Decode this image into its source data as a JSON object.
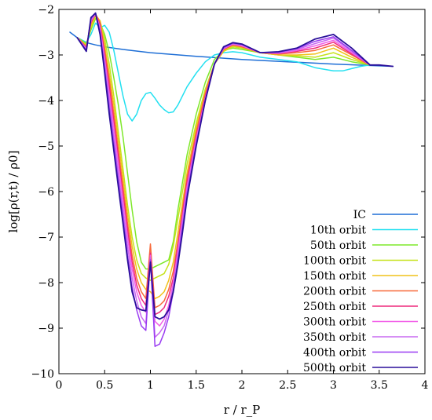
{
  "chart_data": {
    "type": "line",
    "title": "",
    "xlabel": "r / r_P",
    "ylabel": "log[ρ(r,t) / ρ0]",
    "xlim": [
      0,
      4
    ],
    "ylim": [
      -10,
      -2
    ],
    "x_ticks": [
      "0",
      "0.5",
      "1",
      "1.5",
      "2",
      "2.5",
      "3",
      "3.5",
      "4"
    ],
    "y_ticks": [
      "−2",
      "−3",
      "−4",
      "−5",
      "−6",
      "−7",
      "−8",
      "−9",
      "−10"
    ],
    "grid": false,
    "legend_position": "bottom-right",
    "series": [
      {
        "name": "IC",
        "color": "#1f6fd6",
        "x": [
          0.12,
          0.2,
          0.3,
          0.4,
          0.5,
          0.7,
          1.0,
          1.5,
          2.0,
          2.5,
          3.0,
          3.5,
          3.65
        ],
        "y": [
          -2.5,
          -2.62,
          -2.73,
          -2.78,
          -2.82,
          -2.88,
          -2.95,
          -3.03,
          -3.1,
          -3.15,
          -3.2,
          -3.24,
          -3.25
        ]
      },
      {
        "name": "10th orbit",
        "color": "#22e0f0",
        "x": [
          0.2,
          0.3,
          0.35,
          0.4,
          0.45,
          0.5,
          0.55,
          0.6,
          0.65,
          0.7,
          0.75,
          0.8,
          0.85,
          0.9,
          0.95,
          1.0,
          1.05,
          1.1,
          1.15,
          1.2,
          1.25,
          1.3,
          1.4,
          1.5,
          1.6,
          1.7,
          1.8,
          1.9,
          2.0,
          2.2,
          2.4,
          2.6,
          2.8,
          3.0,
          3.1,
          3.2,
          3.3,
          3.4,
          3.5
        ],
        "y": [
          -2.62,
          -2.72,
          -2.55,
          -2.3,
          -2.4,
          -2.35,
          -2.5,
          -2.9,
          -3.4,
          -3.9,
          -4.3,
          -4.45,
          -4.3,
          -4.0,
          -3.85,
          -3.82,
          -3.95,
          -4.1,
          -4.2,
          -4.27,
          -4.25,
          -4.1,
          -3.7,
          -3.4,
          -3.15,
          -3.0,
          -2.95,
          -2.93,
          -2.95,
          -3.05,
          -3.1,
          -3.15,
          -3.28,
          -3.35,
          -3.35,
          -3.3,
          -3.25,
          -3.22,
          -3.22
        ]
      },
      {
        "name": "50th orbit",
        "color": "#7ee82a",
        "x": [
          0.2,
          0.3,
          0.35,
          0.4,
          0.45,
          0.5,
          0.55,
          0.6,
          0.65,
          0.7,
          0.75,
          0.8,
          0.85,
          0.9,
          0.95,
          1.0,
          1.05,
          1.1,
          1.15,
          1.2,
          1.25,
          1.3,
          1.35,
          1.4,
          1.5,
          1.6,
          1.7,
          1.8,
          1.9,
          2.0,
          2.2,
          2.4,
          2.6,
          2.8,
          3.0,
          3.2,
          3.4,
          3.5
        ],
        "y": [
          -2.62,
          -2.75,
          -2.45,
          -2.2,
          -2.3,
          -2.55,
          -2.95,
          -3.5,
          -4.1,
          -4.8,
          -5.6,
          -6.4,
          -7.1,
          -7.55,
          -7.7,
          -7.7,
          -7.65,
          -7.6,
          -7.55,
          -7.5,
          -7.1,
          -6.4,
          -5.8,
          -5.2,
          -4.3,
          -3.6,
          -3.1,
          -2.9,
          -2.85,
          -2.88,
          -2.95,
          -3.0,
          -3.05,
          -3.1,
          -3.05,
          -3.15,
          -3.22,
          -3.22
        ]
      },
      {
        "name": "100th orbit",
        "color": "#c6e21a",
        "x": [
          0.2,
          0.3,
          0.35,
          0.4,
          0.45,
          0.5,
          0.55,
          0.6,
          0.65,
          0.7,
          0.75,
          0.8,
          0.85,
          0.9,
          0.95,
          1.0,
          1.05,
          1.1,
          1.15,
          1.2,
          1.25,
          1.3,
          1.35,
          1.4,
          1.5,
          1.6,
          1.7,
          1.8,
          1.9,
          2.0,
          2.2,
          2.4,
          2.6,
          2.8,
          3.0,
          3.2,
          3.4,
          3.5
        ],
        "y": [
          -2.62,
          -2.78,
          -2.4,
          -2.15,
          -2.25,
          -2.65,
          -3.2,
          -3.9,
          -4.7,
          -5.5,
          -6.3,
          -7.0,
          -7.5,
          -7.8,
          -7.9,
          -7.95,
          -7.9,
          -7.85,
          -7.8,
          -7.6,
          -7.2,
          -6.6,
          -6.0,
          -5.4,
          -4.5,
          -3.75,
          -3.2,
          -2.92,
          -2.82,
          -2.85,
          -2.95,
          -3.0,
          -3.02,
          -3.05,
          -2.95,
          -3.1,
          -3.22,
          -3.22
        ]
      },
      {
        "name": "150th orbit",
        "color": "#f0c21a",
        "x": [
          0.2,
          0.3,
          0.35,
          0.4,
          0.45,
          0.5,
          0.55,
          0.6,
          0.65,
          0.7,
          0.75,
          0.8,
          0.85,
          0.9,
          0.95,
          1.0,
          1.05,
          1.1,
          1.15,
          1.2,
          1.25,
          1.3,
          1.35,
          1.4,
          1.5,
          1.6,
          1.7,
          1.8,
          1.9,
          2.0,
          2.2,
          2.4,
          2.6,
          2.8,
          3.0,
          3.2,
          3.4,
          3.5
        ],
        "y": [
          -2.62,
          -2.8,
          -2.35,
          -2.12,
          -2.25,
          -2.8,
          -3.4,
          -4.1,
          -4.9,
          -5.7,
          -6.5,
          -7.2,
          -7.7,
          -8.0,
          -8.15,
          -8.2,
          -8.35,
          -8.3,
          -8.2,
          -7.95,
          -7.55,
          -6.9,
          -6.25,
          -5.6,
          -4.6,
          -3.8,
          -3.2,
          -2.9,
          -2.8,
          -2.83,
          -2.95,
          -3.0,
          -3.0,
          -2.98,
          -2.85,
          -3.05,
          -3.22,
          -3.22
        ]
      },
      {
        "name": "200th orbit",
        "color": "#f86a3a",
        "x": [
          0.2,
          0.3,
          0.35,
          0.4,
          0.45,
          0.5,
          0.55,
          0.6,
          0.65,
          0.7,
          0.75,
          0.8,
          0.85,
          0.9,
          0.95,
          1.0,
          1.05,
          1.1,
          1.15,
          1.2,
          1.25,
          1.3,
          1.35,
          1.4,
          1.5,
          1.6,
          1.7,
          1.8,
          1.9,
          2.0,
          2.2,
          2.4,
          2.6,
          2.8,
          3.0,
          3.2,
          3.4,
          3.5
        ],
        "y": [
          -2.62,
          -2.82,
          -2.3,
          -2.1,
          -2.3,
          -2.9,
          -3.55,
          -4.3,
          -5.1,
          -5.9,
          -6.7,
          -7.4,
          -7.9,
          -8.2,
          -8.35,
          -7.15,
          -8.55,
          -8.5,
          -8.4,
          -8.15,
          -7.75,
          -7.1,
          -6.4,
          -5.7,
          -4.7,
          -3.85,
          -3.2,
          -2.88,
          -2.78,
          -2.82,
          -2.95,
          -2.98,
          -2.95,
          -2.9,
          -2.78,
          -3.0,
          -3.22,
          -3.22
        ]
      },
      {
        "name": "250th orbit",
        "color": "#ee2a7b",
        "x": [
          0.2,
          0.3,
          0.35,
          0.4,
          0.45,
          0.5,
          0.55,
          0.6,
          0.65,
          0.7,
          0.75,
          0.8,
          0.85,
          0.9,
          0.95,
          1.0,
          1.05,
          1.1,
          1.15,
          1.2,
          1.25,
          1.3,
          1.35,
          1.4,
          1.5,
          1.6,
          1.7,
          1.8,
          1.9,
          2.0,
          2.2,
          2.4,
          2.6,
          2.8,
          3.0,
          3.2,
          3.4,
          3.5
        ],
        "y": [
          -2.62,
          -2.84,
          -2.28,
          -2.1,
          -2.35,
          -3.0,
          -3.7,
          -4.45,
          -5.25,
          -6.05,
          -6.85,
          -7.55,
          -8.05,
          -8.35,
          -8.5,
          -7.35,
          -8.7,
          -8.65,
          -8.55,
          -8.3,
          -7.9,
          -7.2,
          -6.5,
          -5.8,
          -4.8,
          -3.9,
          -3.2,
          -2.87,
          -2.77,
          -2.8,
          -2.95,
          -2.97,
          -2.92,
          -2.85,
          -2.72,
          -2.98,
          -3.22,
          -3.22
        ]
      },
      {
        "name": "300th orbit",
        "color": "#f25ee8",
        "x": [
          0.2,
          0.3,
          0.35,
          0.4,
          0.45,
          0.5,
          0.55,
          0.6,
          0.65,
          0.7,
          0.75,
          0.8,
          0.85,
          0.9,
          0.95,
          1.0,
          1.05,
          1.1,
          1.15,
          1.2,
          1.25,
          1.3,
          1.35,
          1.4,
          1.5,
          1.6,
          1.7,
          1.8,
          1.9,
          2.0,
          2.2,
          2.4,
          2.6,
          2.8,
          3.0,
          3.2,
          3.4,
          3.5
        ],
        "y": [
          -2.62,
          -2.86,
          -2.25,
          -2.1,
          -2.4,
          -3.1,
          -3.85,
          -4.6,
          -5.4,
          -6.2,
          -7.0,
          -7.7,
          -8.2,
          -8.5,
          -8.65,
          -7.4,
          -8.85,
          -8.95,
          -8.8,
          -8.5,
          -8.0,
          -7.3,
          -6.6,
          -5.9,
          -4.85,
          -3.95,
          -3.2,
          -2.86,
          -2.76,
          -2.8,
          -2.95,
          -2.96,
          -2.9,
          -2.8,
          -2.68,
          -2.95,
          -3.22,
          -3.22
        ]
      },
      {
        "name": "350th orbit",
        "color": "#c86af0",
        "x": [
          0.2,
          0.3,
          0.35,
          0.4,
          0.45,
          0.5,
          0.55,
          0.6,
          0.65,
          0.7,
          0.75,
          0.8,
          0.85,
          0.9,
          0.95,
          1.0,
          1.05,
          1.1,
          1.15,
          1.2,
          1.25,
          1.3,
          1.35,
          1.4,
          1.5,
          1.6,
          1.7,
          1.8,
          1.9,
          2.0,
          2.2,
          2.4,
          2.6,
          2.8,
          3.0,
          3.2,
          3.4,
          3.5
        ],
        "y": [
          -2.62,
          -2.88,
          -2.22,
          -2.1,
          -2.45,
          -3.2,
          -4.0,
          -4.8,
          -5.6,
          -6.4,
          -7.2,
          -7.9,
          -8.4,
          -8.75,
          -8.9,
          -7.45,
          -9.2,
          -9.1,
          -8.95,
          -8.6,
          -8.1,
          -7.4,
          -6.7,
          -6.0,
          -4.9,
          -4.0,
          -3.2,
          -2.85,
          -2.75,
          -2.78,
          -2.95,
          -2.95,
          -2.88,
          -2.75,
          -2.63,
          -2.92,
          -3.22,
          -3.22
        ]
      },
      {
        "name": "400th orbit",
        "color": "#9a3cf2",
        "x": [
          0.2,
          0.3,
          0.35,
          0.4,
          0.45,
          0.5,
          0.55,
          0.6,
          0.65,
          0.7,
          0.75,
          0.8,
          0.85,
          0.9,
          0.95,
          1.0,
          1.05,
          1.1,
          1.15,
          1.2,
          1.25,
          1.3,
          1.35,
          1.4,
          1.5,
          1.6,
          1.7,
          1.8,
          1.9,
          2.0,
          2.2,
          2.4,
          2.6,
          2.8,
          3.0,
          3.2,
          3.4,
          3.5
        ],
        "y": [
          -2.62,
          -2.9,
          -2.2,
          -2.08,
          -2.5,
          -3.3,
          -4.15,
          -4.95,
          -5.75,
          -6.55,
          -7.4,
          -8.1,
          -8.6,
          -8.95,
          -9.05,
          -7.5,
          -9.4,
          -9.35,
          -9.1,
          -8.75,
          -8.2,
          -7.5,
          -6.8,
          -6.05,
          -4.95,
          -4.0,
          -3.2,
          -2.84,
          -2.74,
          -2.77,
          -2.95,
          -2.94,
          -2.86,
          -2.7,
          -2.6,
          -2.9,
          -3.22,
          -3.22
        ]
      },
      {
        "name": "500th orbit",
        "color": "#2a0f9a",
        "x": [
          0.2,
          0.3,
          0.35,
          0.4,
          0.45,
          0.5,
          0.55,
          0.6,
          0.65,
          0.7,
          0.75,
          0.8,
          0.85,
          0.9,
          0.95,
          1.0,
          1.05,
          1.1,
          1.15,
          1.2,
          1.25,
          1.3,
          1.35,
          1.4,
          1.5,
          1.6,
          1.7,
          1.8,
          1.9,
          2.0,
          2.2,
          2.4,
          2.6,
          2.8,
          3.0,
          3.2,
          3.4,
          3.5,
          3.65
        ],
        "y": [
          -2.62,
          -2.92,
          -2.18,
          -2.08,
          -2.55,
          -3.4,
          -4.3,
          -5.1,
          -5.9,
          -6.7,
          -7.5,
          -8.2,
          -8.55,
          -8.6,
          -8.62,
          -7.55,
          -8.75,
          -8.8,
          -8.75,
          -8.6,
          -8.2,
          -7.6,
          -6.9,
          -6.15,
          -5.0,
          -4.0,
          -3.2,
          -2.82,
          -2.73,
          -2.76,
          -2.95,
          -2.93,
          -2.85,
          -2.65,
          -2.55,
          -2.85,
          -3.22,
          -3.22,
          -3.25
        ]
      }
    ]
  }
}
